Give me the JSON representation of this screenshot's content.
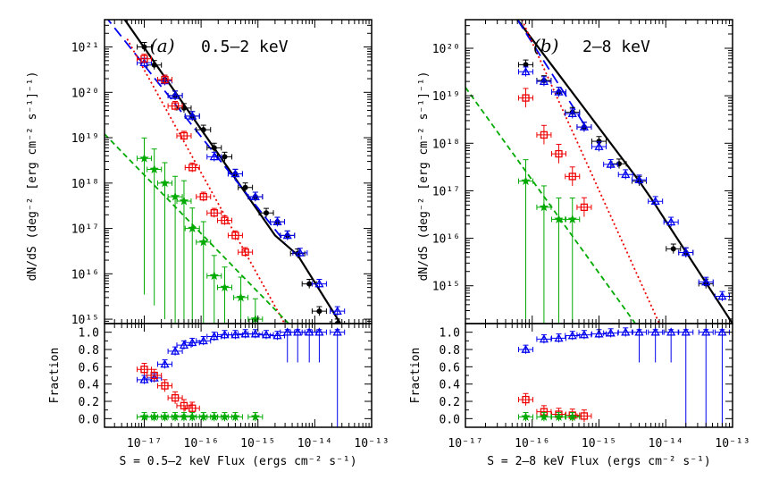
{
  "colors": {
    "total": "#000000",
    "agn": "#0000ee",
    "galaxy": "#ee0000",
    "star": "#00aa00"
  },
  "chart_data": [
    {
      "type": "scatter",
      "panel_label": "(a)",
      "band_label": "0.5–2 keV",
      "xlabel": "S = 0.5–2 keV Flux (ergs cm⁻² s⁻¹)",
      "ylabel": "dN/dS (deg⁻² [erg cm⁻² s⁻¹]⁻¹)",
      "fraction_ylabel": "Fraction",
      "xlim": [
        2e-18,
        1e-13
      ],
      "ylim_top": [
        800000000000000.0,
        4e+21
      ],
      "ylim_fraction": [
        -0.1,
        1.1
      ],
      "x_tick_labels": [
        "10⁻¹⁷",
        "10⁻¹⁶",
        "10⁻¹⁵",
        "10⁻¹⁴",
        "10⁻¹³"
      ],
      "y_tick_labels": [
        "10¹⁵",
        "10¹⁶",
        "10¹⁷",
        "10¹⁸",
        "10¹⁹",
        "10²⁰",
        "10²¹"
      ],
      "fraction_tick_labels": [
        "0.0",
        "0.2",
        "0.4",
        "0.6",
        "0.8",
        "1.0"
      ],
      "series": [
        {
          "key": "total",
          "marker": "circle",
          "x": [
            1e-17,
            1.5e-17,
            2.3e-17,
            3.5e-17,
            5e-17,
            7e-17,
            1.1e-16,
            1.7e-16,
            2.6e-16,
            4e-16,
            6e-16,
            9e-16,
            1.4e-15,
            2.2e-15,
            3.3e-15,
            5e-15,
            8e-15,
            1.2e-14,
            2.5e-14
          ],
          "y": [
            1e+21,
            4e+20,
            1.9e+20,
            8.5e+19,
            4.5e+19,
            3e+19,
            1.5e+19,
            6e+18,
            3.8e+18,
            1.6e+18,
            8e+17,
            5e+17,
            2.2e+17,
            1.4e+17,
            7e+16,
            2.8e+16,
            6000000000000000.0,
            1500000000000000.0,
            800000000000000.0
          ]
        },
        {
          "key": "agn",
          "marker": "triangle",
          "x": [
            1e-17,
            2.3e-17,
            3.5e-17,
            7e-17,
            1.7e-16,
            4e-16,
            9e-16,
            2.2e-15,
            3.3e-15,
            5.5e-15,
            1.2e-14,
            2.5e-14
          ],
          "y": [
            4.5e+20,
            1.8e+20,
            8.5e+19,
            3e+19,
            3.8e+18,
            1.6e+18,
            5e+17,
            1.4e+17,
            7e+16,
            2.9e+16,
            6000000000000000.0,
            1500000000000000.0
          ]
        },
        {
          "key": "galaxy",
          "marker": "square",
          "x": [
            1e-17,
            2.3e-17,
            3.5e-17,
            5e-17,
            7e-17,
            1.1e-16,
            1.7e-16,
            2.6e-16,
            4e-16,
            6e-16
          ],
          "y": [
            5.5e+20,
            1.9e+20,
            5e+19,
            1.1e+19,
            2.2e+18,
            5e+17,
            2.2e+17,
            1.5e+17,
            7e+16,
            3e+16
          ]
        },
        {
          "key": "star",
          "marker": "star",
          "x": [
            1e-17,
            1.5e-17,
            2.3e-17,
            3.5e-17,
            5e-17,
            7e-17,
            1.1e-16,
            1.7e-16,
            2.6e-16,
            5e-16,
            9e-16
          ],
          "y": [
            3.5e+18,
            2e+18,
            1e+18,
            5e+17,
            4e+17,
            1e+17,
            5e+16,
            9000000000000000.0,
            5000000000000000.0,
            3000000000000000.0,
            1000000000000000.0
          ]
        }
      ],
      "fraction_series": [
        {
          "key": "agn",
          "marker": "triangle",
          "x": [
            1e-17,
            1.5e-17,
            2.3e-17,
            3.5e-17,
            5e-17,
            7e-17,
            1.1e-16,
            1.7e-16,
            2.6e-16,
            4e-16,
            6e-16,
            9e-16,
            1.4e-15,
            2.2e-15,
            3.3e-15,
            5e-15,
            8e-15,
            1.2e-14,
            2.5e-14
          ],
          "y": [
            0.45,
            0.47,
            0.63,
            0.78,
            0.85,
            0.88,
            0.9,
            0.95,
            0.97,
            0.97,
            0.98,
            0.98,
            0.97,
            0.96,
            1.0,
            1.0,
            1.0,
            1.0,
            1.0
          ]
        },
        {
          "key": "galaxy",
          "marker": "square",
          "x": [
            1e-17,
            1.5e-17,
            2.3e-17,
            3.5e-17,
            5e-17,
            7e-17
          ],
          "y": [
            0.57,
            0.5,
            0.38,
            0.24,
            0.15,
            0.12
          ]
        },
        {
          "key": "star",
          "marker": "star",
          "x": [
            1e-17,
            1.5e-17,
            2.3e-17,
            3.5e-17,
            5e-17,
            7e-17,
            1.1e-16,
            1.7e-16,
            2.6e-16,
            4e-16,
            9e-16
          ],
          "y": [
            0.02,
            0.02,
            0.02,
            0.02,
            0.02,
            0.02,
            0.02,
            0.02,
            0.02,
            0.02,
            0.02
          ]
        }
      ],
      "fits": [
        {
          "key": "total",
          "style": "solid",
          "points": [
            [
              4e-18,
              5e+21
            ],
            [
              2e-15,
              7e+16
            ],
            [
              5e-15,
              2.6e+16
            ],
            [
              4e-14,
              400000000000000.0
            ]
          ]
        },
        {
          "key": "agn",
          "style": "dashed-long",
          "points": [
            [
              2e-18,
              5e+21
            ],
            [
              3e-15,
              5e+16
            ]
          ]
        },
        {
          "key": "galaxy",
          "style": "dotted",
          "points": [
            [
              5e-18,
              1.5e+21
            ],
            [
              4e-15,
              400000000000000.0
            ]
          ]
        },
        {
          "key": "star",
          "style": "dashed",
          "points": [
            [
              2e-18,
              1.2e+19
            ],
            [
              5e-15,
              500000000000000.0
            ]
          ]
        }
      ]
    },
    {
      "type": "scatter",
      "panel_label": "(b)",
      "band_label": "2–8 keV",
      "xlabel": "S = 2–8 keV Flux (ergs cm⁻² s⁻¹)",
      "ylabel": "dN/dS (deg⁻² [erg cm⁻² s⁻¹]⁻¹)",
      "fraction_ylabel": "Fraction",
      "xlim": [
        1e-17,
        1e-13
      ],
      "ylim_top": [
        160000000000000.0,
        4e+20
      ],
      "ylim_fraction": [
        -0.1,
        1.1
      ],
      "x_tick_labels": [
        "10⁻¹⁷",
        "10⁻¹⁶",
        "10⁻¹⁵",
        "10⁻¹⁴",
        "10⁻¹³"
      ],
      "y_tick_labels": [
        "10¹⁵",
        "10¹⁶",
        "10¹⁷",
        "10¹⁸",
        "10¹⁹",
        "10²⁰"
      ],
      "fraction_tick_labels": [
        "0.0",
        "0.2",
        "0.4",
        "0.6",
        "0.8",
        "1.0"
      ],
      "series": [
        {
          "key": "total",
          "marker": "circle",
          "x": [
            8e-17,
            1.5e-16,
            2.5e-16,
            4e-16,
            6e-16,
            1e-15,
            2e-15,
            4e-15,
            1.3e-14,
            2e-14,
            4e-14
          ],
          "y": [
            4.5e+19,
            2.1e+19,
            1.2e+19,
            4.5e+18,
            2.2e+18,
            1.1e+18,
            3.7e+17,
            1.6e+17,
            6000000000000000.0,
            5000000000000000.0,
            1100000000000000.0
          ]
        },
        {
          "key": "agn",
          "marker": "triangle",
          "x": [
            8e-17,
            1.5e-16,
            2.5e-16,
            4e-16,
            6e-16,
            1e-15,
            1.5e-15,
            2.5e-15,
            4e-15,
            7e-15,
            1.2e-14,
            2e-14,
            4e-14,
            7e-14
          ],
          "y": [
            3.2e+19,
            2e+19,
            1.2e+19,
            4.2e+18,
            2.2e+18,
            8.5e+17,
            3.6e+17,
            2.2e+17,
            1.7e+17,
            6e+16,
            2.2e+16,
            5000000000000000.0,
            1200000000000000.0,
            600000000000000.0
          ]
        },
        {
          "key": "galaxy",
          "marker": "square",
          "x": [
            8e-17,
            1.5e-16,
            2.5e-16,
            4e-16,
            6e-16
          ],
          "y": [
            9e+18,
            1.5e+18,
            6e+17,
            2e+17,
            4.5e+16
          ]
        },
        {
          "key": "star",
          "marker": "star",
          "x": [
            8e-17,
            1.5e-16,
            2.5e-16,
            4e-16
          ],
          "y": [
            1.6e+17,
            4.5e+16,
            2.5e+16,
            2.5e+16
          ]
        }
      ],
      "fraction_series": [
        {
          "key": "agn",
          "marker": "triangle",
          "x": [
            8e-17,
            1.5e-16,
            2.5e-16,
            4e-16,
            6e-16,
            1e-15,
            1.5e-15,
            2.5e-15,
            4e-15,
            7e-15,
            1.2e-14,
            2e-14,
            4e-14,
            7e-14
          ],
          "y": [
            0.8,
            0.92,
            0.93,
            0.96,
            0.97,
            0.98,
            0.99,
            1.0,
            1.0,
            1.0,
            1.0,
            1.0,
            1.0,
            1.0
          ]
        },
        {
          "key": "galaxy",
          "marker": "square",
          "x": [
            8e-17,
            1.5e-16,
            2.5e-16,
            4e-16,
            6e-16
          ],
          "y": [
            0.22,
            0.08,
            0.05,
            0.04,
            0.03
          ]
        },
        {
          "key": "star",
          "marker": "star",
          "x": [
            8e-17,
            1.5e-16,
            2.5e-16,
            4e-16
          ],
          "y": [
            0.02,
            0.02,
            0.02,
            0.02
          ]
        }
      ],
      "fits": [
        {
          "key": "total",
          "style": "solid",
          "points": [
            [
              6e-17,
              4e+20
            ],
            [
              4e-15,
              1.6e+17
            ],
            [
              6e-15,
              7e+16
            ],
            [
              1e-13,
              160000000000000.0
            ]
          ]
        },
        {
          "key": "agn",
          "style": "dashed-long",
          "points": [
            [
              6e-17,
              4e+20
            ],
            [
              6e-16,
              2.5e+18
            ]
          ]
        },
        {
          "key": "galaxy",
          "style": "dotted",
          "points": [
            [
              7e-17,
              4e+20
            ],
            [
              8e-15,
              160000000000000.0
            ]
          ]
        },
        {
          "key": "star",
          "style": "dashed",
          "points": [
            [
              1e-17,
              1.5e+19
            ],
            [
              3.5e-15,
              160000000000000.0
            ]
          ]
        }
      ]
    }
  ]
}
